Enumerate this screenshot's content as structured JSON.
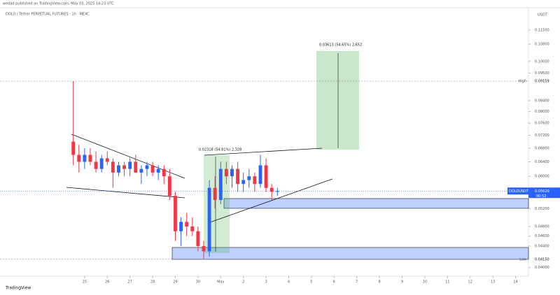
{
  "header": "wedad published on TradingView.com, May 03, 2025 14:23 UTC",
  "footer": "TradingView",
  "chart_data": {
    "type": "candlestick",
    "title": "DOLO / Tether PERPETUAL FUTURES · 1h · MEXC",
    "currency": "USDT",
    "symbol": "DOLOUSDT.P",
    "up_color": "#2962ff",
    "down_color": "#f23645",
    "log_scale": true,
    "xlim": [
      -3.73,
      19.57
    ],
    "ylim": [
      0.0385,
      0.125
    ],
    "xticks": [
      {
        "value": 0,
        "label": "25"
      },
      {
        "value": 1,
        "label": "26"
      },
      {
        "value": 2,
        "label": "27"
      },
      {
        "value": 3,
        "label": "28"
      },
      {
        "value": 4,
        "label": "29"
      },
      {
        "value": 5,
        "label": "30"
      },
      {
        "value": 6,
        "label": "May"
      },
      {
        "value": 7,
        "label": "2"
      },
      {
        "value": 8,
        "label": "3"
      },
      {
        "value": 9,
        "label": "4"
      },
      {
        "value": 10,
        "label": "5"
      },
      {
        "value": 11,
        "label": "6"
      },
      {
        "value": 12,
        "label": "7"
      },
      {
        "value": 13,
        "label": "8"
      },
      {
        "value": 14,
        "label": "9"
      },
      {
        "value": 15,
        "label": "10"
      },
      {
        "value": 16,
        "label": "11"
      },
      {
        "value": 17,
        "label": "12"
      },
      {
        "value": 18,
        "label": "13"
      },
      {
        "value": 19,
        "label": "14"
      }
    ],
    "yticks": [
      {
        "value": 0.04,
        "label": "0.04000"
      },
      {
        "value": 0.044,
        "label": "0.04400"
      },
      {
        "value": 0.046,
        "label": "0.04600"
      },
      {
        "value": 0.048,
        "label": "0.04800"
      },
      {
        "value": 0.052,
        "label": "0.05200"
      },
      {
        "value": 0.06,
        "label": "0.06000"
      },
      {
        "value": 0.064,
        "label": "0.06400"
      },
      {
        "value": 0.068,
        "label": "0.06800"
      },
      {
        "value": 0.072,
        "label": "0.07200"
      },
      {
        "value": 0.076,
        "label": "0.07600"
      },
      {
        "value": 0.08,
        "label": "0.08000"
      },
      {
        "value": 0.084,
        "label": "0.08400"
      },
      {
        "value": 0.095,
        "label": "0.09500"
      },
      {
        "value": 0.1,
        "label": "0.10000"
      },
      {
        "value": 0.108,
        "label": "0.10800"
      },
      {
        "value": 0.115,
        "label": "0.11500"
      }
    ],
    "x": [
      -0.5,
      -0.25,
      0,
      0.25,
      0.5,
      0.75,
      1,
      1.25,
      1.5,
      1.75,
      2,
      2.25,
      2.5,
      2.75,
      3,
      3.25,
      3.5,
      3.75,
      4,
      4.25,
      4.5,
      4.75,
      5,
      5.25,
      5.5,
      5.75,
      6,
      6.25,
      6.5,
      6.75,
      7,
      7.25,
      7.5,
      7.75,
      8,
      8.25,
      8.5
    ],
    "open": [
      0.07,
      0.066,
      0.064,
      0.066,
      0.064,
      0.062,
      0.065,
      0.064,
      0.061,
      0.063,
      0.062,
      0.064,
      0.061,
      0.062,
      0.063,
      0.061,
      0.062,
      0.06,
      0.055,
      0.047,
      0.049,
      0.048,
      0.047,
      0.044,
      0.043,
      0.057,
      0.054,
      0.062,
      0.06,
      0.062,
      0.058,
      0.059,
      0.06,
      0.058,
      0.063,
      0.057,
      0.056
    ],
    "high": [
      0.0916,
      0.069,
      0.068,
      0.068,
      0.067,
      0.066,
      0.067,
      0.065,
      0.064,
      0.064,
      0.065,
      0.066,
      0.063,
      0.064,
      0.064,
      0.063,
      0.063,
      0.062,
      0.056,
      0.05,
      0.051,
      0.05,
      0.048,
      0.045,
      0.059,
      0.06,
      0.064,
      0.064,
      0.063,
      0.064,
      0.061,
      0.062,
      0.061,
      0.066,
      0.065,
      0.058,
      0.057
    ],
    "low": [
      0.063,
      0.061,
      0.062,
      0.063,
      0.061,
      0.061,
      0.063,
      0.057,
      0.06,
      0.06,
      0.06,
      0.061,
      0.058,
      0.06,
      0.06,
      0.059,
      0.058,
      0.054,
      0.045,
      0.044,
      0.046,
      0.046,
      0.043,
      0.0415,
      0.042,
      0.052,
      0.053,
      0.058,
      0.057,
      0.056,
      0.056,
      0.057,
      0.056,
      0.057,
      0.056,
      0.054,
      0.055
    ],
    "close": [
      0.066,
      0.064,
      0.066,
      0.064,
      0.062,
      0.065,
      0.064,
      0.061,
      0.063,
      0.062,
      0.064,
      0.061,
      0.062,
      0.063,
      0.061,
      0.062,
      0.06,
      0.055,
      0.047,
      0.049,
      0.048,
      0.047,
      0.044,
      0.043,
      0.057,
      0.054,
      0.062,
      0.06,
      0.062,
      0.058,
      0.059,
      0.06,
      0.058,
      0.063,
      0.057,
      0.056,
      0.0562
    ],
    "high_marker": {
      "name": "High",
      "value": 0.09159,
      "label": "0.09159"
    },
    "low_marker": {
      "name": "Low",
      "value": 0.0415,
      "label": "0.04150"
    },
    "last_price": {
      "value": 0.0562,
      "label": "0.05620",
      "countdown": "00:52"
    },
    "annotations": [
      "0.03613 (54.65%) 2,652",
      "0.02318 (54.81%) 2,328"
    ]
  }
}
